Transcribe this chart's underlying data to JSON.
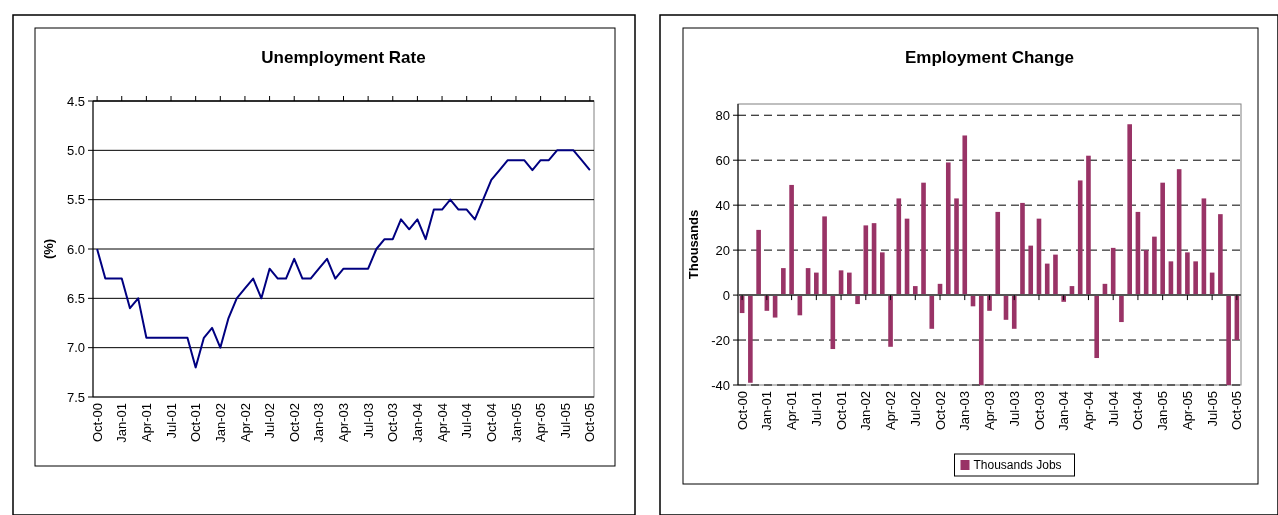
{
  "chart_data": [
    {
      "type": "line",
      "title": "Unemployment Rate",
      "ylabel": "(%)",
      "categories": [
        "Oct-00",
        null,
        null,
        "Jan-01",
        null,
        null,
        "Apr-01",
        null,
        null,
        "Jul-01",
        null,
        null,
        "Oct-01",
        null,
        null,
        "Jan-02",
        null,
        null,
        "Apr-02",
        null,
        null,
        "Jul-02",
        null,
        null,
        "Oct-02",
        null,
        null,
        "Jan-03",
        null,
        null,
        "Apr-03",
        null,
        null,
        "Jul-03",
        null,
        null,
        "Oct-03",
        null,
        null,
        "Jan-04",
        null,
        null,
        "Apr-04",
        null,
        null,
        "Jul-04",
        null,
        null,
        "Oct-04",
        null,
        null,
        "Jan-05",
        null,
        null,
        "Apr-05",
        null,
        null,
        "Jul-05",
        null,
        null,
        "Oct-05"
      ],
      "series": [
        {
          "color": "#000080",
          "values": [
            6.0,
            6.3,
            6.3,
            6.3,
            6.6,
            6.5,
            6.9,
            6.9,
            6.9,
            6.9,
            6.9,
            6.9,
            7.2,
            6.9,
            6.8,
            7.0,
            6.7,
            6.5,
            6.4,
            6.3,
            6.5,
            6.2,
            6.3,
            6.3,
            6.1,
            6.3,
            6.3,
            6.2,
            6.1,
            6.3,
            6.2,
            6.2,
            6.2,
            6.2,
            6.0,
            5.9,
            5.9,
            5.7,
            5.8,
            5.7,
            5.9,
            5.6,
            5.6,
            5.5,
            5.6,
            5.6,
            5.7,
            5.5,
            5.3,
            5.2,
            5.1,
            5.1,
            5.1,
            5.2,
            5.1,
            5.1,
            5.0,
            5.0,
            5.0,
            5.1,
            5.2
          ]
        }
      ],
      "ylim": [
        7.5,
        4.5
      ],
      "yticks": [
        4.5,
        {
          "value": 5,
          "label": "5.0"
        },
        5.5,
        {
          "value": 6,
          "label": "6.0"
        },
        6.5,
        {
          "value": 7,
          "label": "7.0"
        },
        7.5
      ],
      "grid": "y",
      "legend": false
    },
    {
      "type": "bar",
      "title": "Employment Change",
      "ylabel": "Thousands",
      "categories": [
        "Oct-00",
        null,
        null,
        "Jan-01",
        null,
        null,
        "Apr-01",
        null,
        null,
        "Jul-01",
        null,
        null,
        "Oct-01",
        null,
        null,
        "Jan-02",
        null,
        null,
        "Apr-02",
        null,
        null,
        "Jul-02",
        null,
        null,
        "Oct-02",
        null,
        null,
        "Jan-03",
        null,
        null,
        "Apr-03",
        null,
        null,
        "Jul-03",
        null,
        null,
        "Oct-03",
        null,
        null,
        "Jan-04",
        null,
        null,
        "Apr-04",
        null,
        null,
        "Jul-04",
        null,
        null,
        "Oct-04",
        null,
        null,
        "Jan-05",
        null,
        null,
        "Apr-05",
        null,
        null,
        "Jul-05",
        null,
        null,
        "Oct-05"
      ],
      "series": [
        {
          "name": "Thousands Jobs",
          "color": "#993366",
          "values": [
            -8,
            -39,
            29,
            -7,
            -10,
            12,
            49,
            -9,
            12,
            10,
            35,
            -24,
            11,
            10,
            -4,
            31,
            32,
            19,
            -23,
            43,
            34,
            4,
            50,
            -15,
            5,
            59,
            43,
            71,
            -5,
            -40,
            -7,
            37,
            -11,
            -15,
            41,
            22,
            34,
            14,
            18,
            -3,
            4,
            51,
            62,
            -28,
            5,
            21,
            -12,
            76,
            37,
            20,
            26,
            50,
            15,
            56,
            19,
            15,
            43,
            10,
            36,
            -40,
            -20
          ]
        }
      ],
      "ylim": [
        -40,
        85
      ],
      "yticks": [
        -40,
        -20,
        0,
        20,
        40,
        60,
        80
      ],
      "grid": "y",
      "legend": "bottom"
    }
  ]
}
